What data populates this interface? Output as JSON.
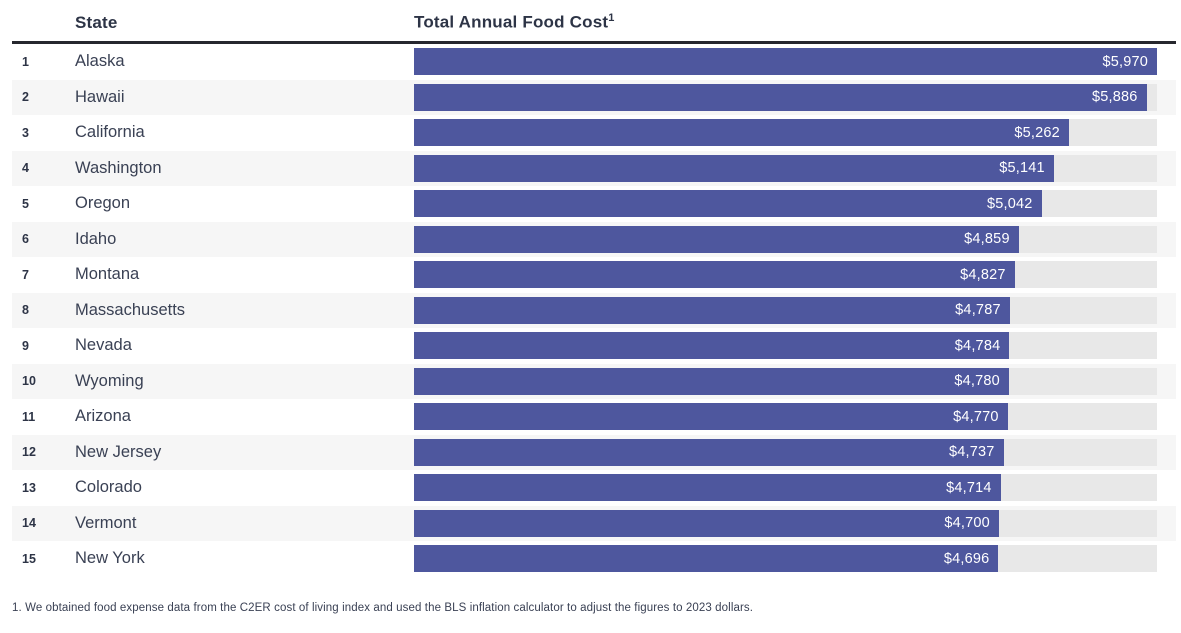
{
  "table": {
    "state_header": "State",
    "cost_header": "Total Annual Food Cost",
    "cost_header_superscript": "1"
  },
  "chart_data": {
    "type": "bar",
    "orientation": "horizontal",
    "title": "Total Annual Food Cost",
    "categories": [
      "Alaska",
      "Hawaii",
      "California",
      "Washington",
      "Oregon",
      "Idaho",
      "Montana",
      "Massachusetts",
      "Nevada",
      "Wyoming",
      "Arizona",
      "New Jersey",
      "Colorado",
      "Vermont",
      "New York"
    ],
    "ranks": [
      "1",
      "2",
      "3",
      "4",
      "5",
      "6",
      "7",
      "8",
      "9",
      "10",
      "11",
      "12",
      "13",
      "14",
      "15"
    ],
    "values": [
      5970,
      5886,
      5262,
      5141,
      5042,
      4859,
      4827,
      4787,
      4784,
      4780,
      4770,
      4737,
      4714,
      4700,
      4696
    ],
    "value_labels": [
      "$5,970",
      "$5,886",
      "$5,262",
      "$5,141",
      "$5,042",
      "$4,859",
      "$4,827",
      "$4,787",
      "$4,784",
      "$4,780",
      "$4,770",
      "$4,737",
      "$4,714",
      "$4,700",
      "$4,696"
    ],
    "xlim": [
      0,
      5970
    ],
    "bar_color": "#4e579e",
    "track_color": "#e8e8e8",
    "alt_row_color": "#f6f6f6",
    "legend": "none",
    "grid": "off"
  },
  "footnote": "1. We obtained food expense data from the C2ER cost of living index and used the BLS inflation calculator to adjust the figures to 2023 dollars."
}
